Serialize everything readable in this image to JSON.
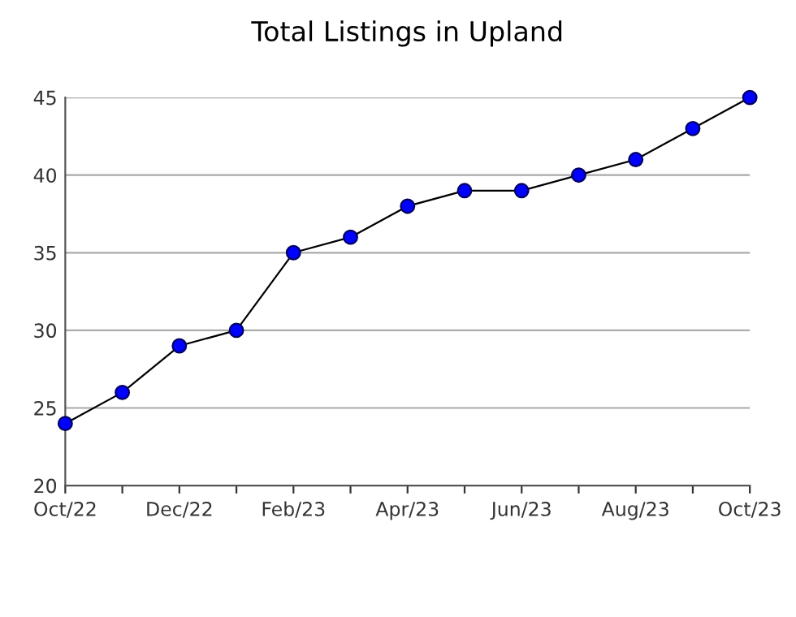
{
  "chart_data": {
    "type": "line",
    "title": "Total Listings in Upland",
    "categories": [
      "Oct/22",
      null,
      "Dec/22",
      null,
      "Feb/23",
      null,
      "Apr/23",
      null,
      "Jun/23",
      null,
      "Aug/23",
      null,
      "Oct/23"
    ],
    "series": [
      {
        "color": "#0000ff",
        "values": [
          24,
          26,
          29,
          30,
          35,
          36,
          38,
          39,
          39,
          40,
          41,
          43,
          45
        ]
      }
    ],
    "ylim": [
      20,
      45
    ],
    "yticks": [
      20,
      25,
      30,
      35,
      40,
      45
    ],
    "grid": "y",
    "marker": "circle",
    "line_style": "solid"
  }
}
